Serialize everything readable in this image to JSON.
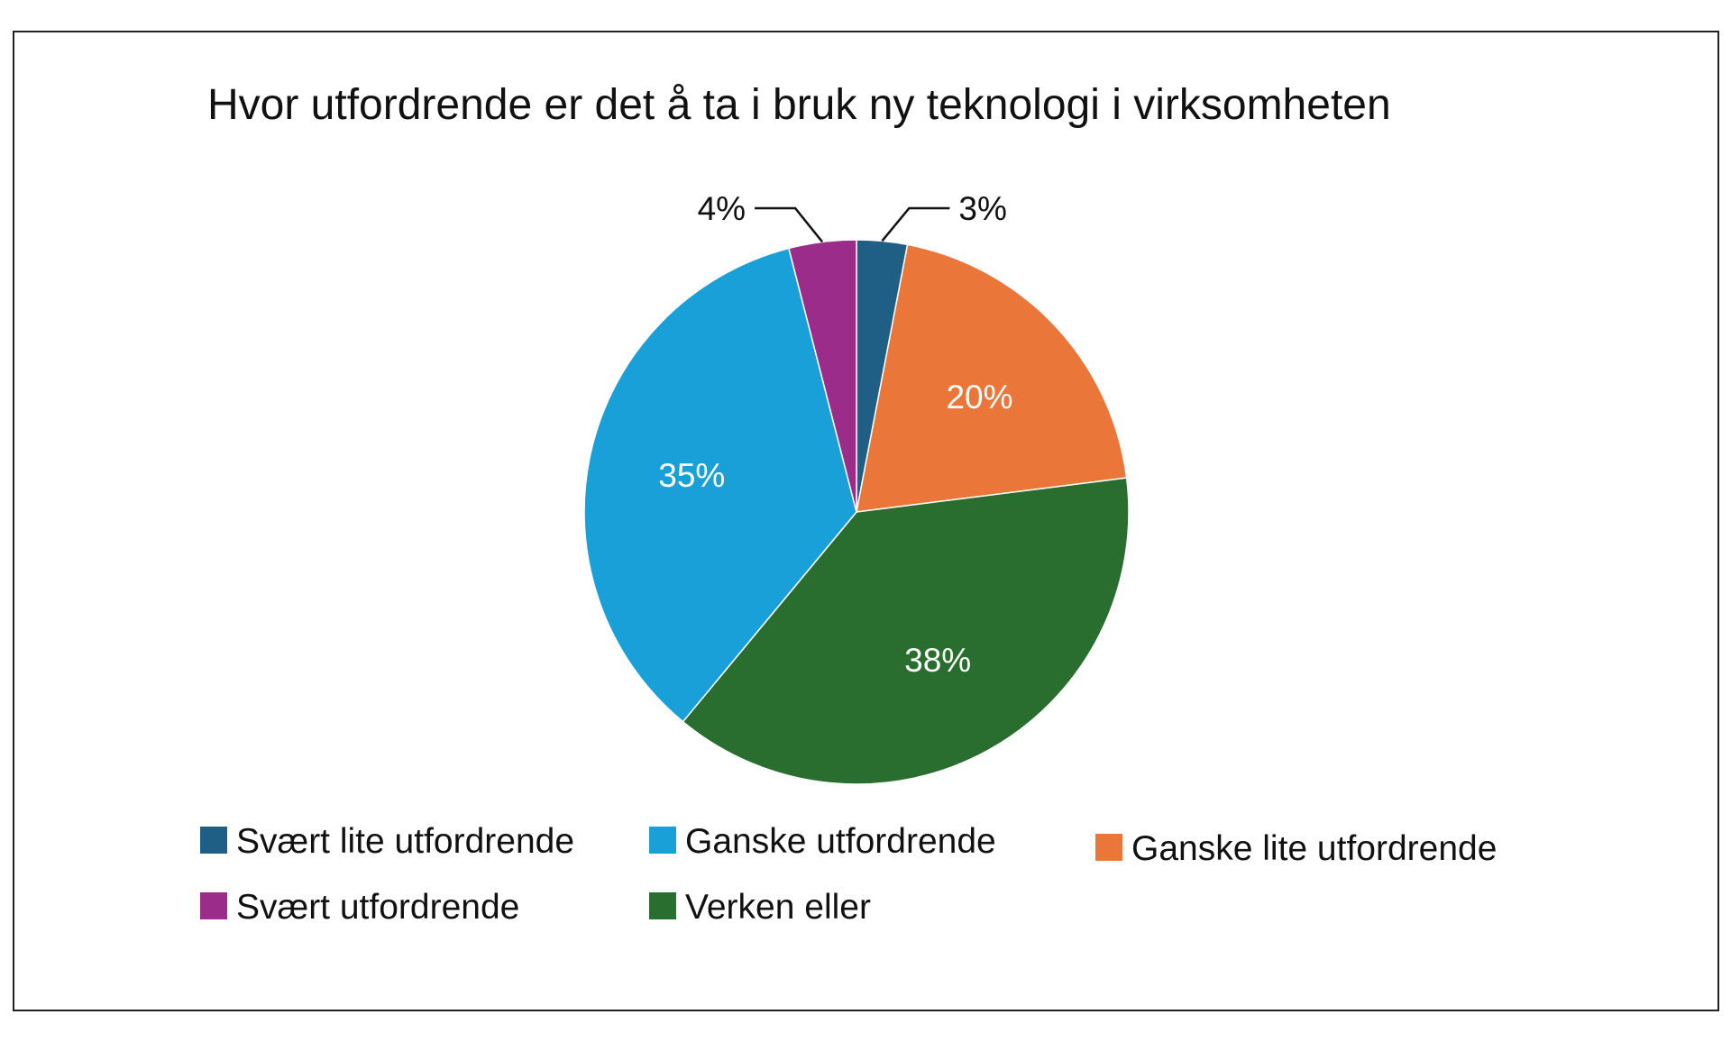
{
  "chart_data": {
    "type": "pie",
    "title": "Hvor utfordrende er det å ta i bruk ny teknologi i virksomheten",
    "slices": [
      {
        "name": "Svært lite utfordrende",
        "value": 3,
        "label": "3%",
        "color": "#1f5f86",
        "label_color": "#111111"
      },
      {
        "name": "Ganske lite utfordrende",
        "value": 20,
        "label": "20%",
        "color": "#ea7639",
        "label_color": "#ffffff"
      },
      {
        "name": "Verken eller",
        "value": 38,
        "label": "38%",
        "color": "#2a6e2f",
        "label_color": "#ffffff"
      },
      {
        "name": "Ganske utfordrende",
        "value": 35,
        "label": "35%",
        "color": "#1aa0d8",
        "label_color": "#ffffff"
      },
      {
        "name": "Svært utfordrende",
        "value": 4,
        "label": "4%",
        "color": "#9b2c8a",
        "label_color": "#111111"
      }
    ],
    "legend": [
      {
        "name": "Svært lite utfordrende",
        "color": "#1f5f86"
      },
      {
        "name": "Ganske utfordrende",
        "color": "#1aa0d8"
      },
      {
        "name": "Ganske lite utfordrende",
        "color": "#ea7639"
      },
      {
        "name": "Svært utfordrende",
        "color": "#9b2c8a"
      },
      {
        "name": "Verken eller",
        "color": "#2a6e2f"
      }
    ],
    "legend_position": "bottom"
  }
}
